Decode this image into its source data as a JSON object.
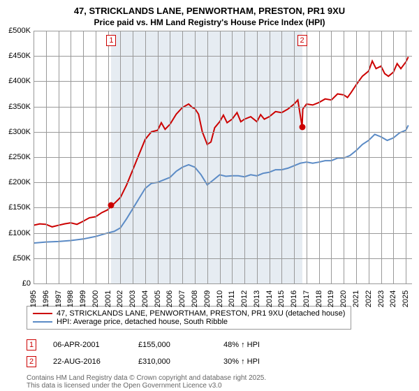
{
  "title": "47, STRICKLANDS LANE, PENWORTHAM, PRESTON, PR1 9XU",
  "subtitle": "Price paid vs. HM Land Registry's House Price Index (HPI)",
  "chart": {
    "type": "line",
    "background_color": "#ffffff",
    "grid_color": "#999999",
    "shaded_band_color": "#e6ecf2",
    "x": {
      "min": 1995,
      "max": 2025.5,
      "ticks": [
        1995,
        1996,
        1997,
        1998,
        1999,
        2000,
        2001,
        2002,
        2003,
        2004,
        2005,
        2006,
        2007,
        2008,
        2009,
        2010,
        2011,
        2012,
        2013,
        2014,
        2015,
        2016,
        2017,
        2018,
        2019,
        2020,
        2021,
        2022,
        2023,
        2024,
        2025
      ]
    },
    "y": {
      "min": 0,
      "max": 500000,
      "tick_step": 50000,
      "labels": [
        "£0",
        "£50K",
        "£100K",
        "£150K",
        "£200K",
        "£250K",
        "£300K",
        "£350K",
        "£400K",
        "£450K",
        "£500K"
      ]
    },
    "series": [
      {
        "name": "47, STRICKLANDS LANE, PENWORTHAM, PRESTON, PR1 9XU (detached house)",
        "color": "#cc0000",
        "width": 2,
        "points": [
          [
            1995,
            115000
          ],
          [
            1995.5,
            118000
          ],
          [
            1996,
            117000
          ],
          [
            1996.5,
            112000
          ],
          [
            1997,
            115000
          ],
          [
            1997.5,
            118000
          ],
          [
            1998,
            120000
          ],
          [
            1998.5,
            117000
          ],
          [
            1999,
            123000
          ],
          [
            1999.5,
            130000
          ],
          [
            2000,
            132000
          ],
          [
            2000.5,
            140000
          ],
          [
            2001,
            146000
          ],
          [
            2001.27,
            155000
          ],
          [
            2001.5,
            158000
          ],
          [
            2002,
            170000
          ],
          [
            2002.5,
            195000
          ],
          [
            2003,
            225000
          ],
          [
            2003.5,
            255000
          ],
          [
            2004,
            285000
          ],
          [
            2004.5,
            300000
          ],
          [
            2005,
            303000
          ],
          [
            2005.3,
            318000
          ],
          [
            2005.6,
            305000
          ],
          [
            2006,
            315000
          ],
          [
            2006.5,
            335000
          ],
          [
            2007,
            348000
          ],
          [
            2007.5,
            355000
          ],
          [
            2007.8,
            348000
          ],
          [
            2008,
            346000
          ],
          [
            2008.3,
            335000
          ],
          [
            2008.6,
            300000
          ],
          [
            2009,
            275000
          ],
          [
            2009.3,
            280000
          ],
          [
            2009.6,
            308000
          ],
          [
            2010,
            320000
          ],
          [
            2010.3,
            333000
          ],
          [
            2010.6,
            318000
          ],
          [
            2011,
            325000
          ],
          [
            2011.4,
            338000
          ],
          [
            2011.7,
            320000
          ],
          [
            2012,
            325000
          ],
          [
            2012.5,
            330000
          ],
          [
            2013,
            320000
          ],
          [
            2013.3,
            334000
          ],
          [
            2013.6,
            325000
          ],
          [
            2014,
            330000
          ],
          [
            2014.5,
            340000
          ],
          [
            2015,
            338000
          ],
          [
            2015.5,
            345000
          ],
          [
            2016,
            355000
          ],
          [
            2016.3,
            363000
          ],
          [
            2016.64,
            310000
          ],
          [
            2016.7,
            345000
          ],
          [
            2017,
            355000
          ],
          [
            2017.5,
            353000
          ],
          [
            2018,
            358000
          ],
          [
            2018.5,
            365000
          ],
          [
            2019,
            363000
          ],
          [
            2019.5,
            375000
          ],
          [
            2020,
            373000
          ],
          [
            2020.3,
            368000
          ],
          [
            2020.6,
            378000
          ],
          [
            2021,
            393000
          ],
          [
            2021.5,
            410000
          ],
          [
            2022,
            420000
          ],
          [
            2022.3,
            440000
          ],
          [
            2022.6,
            425000
          ],
          [
            2023,
            430000
          ],
          [
            2023.3,
            415000
          ],
          [
            2023.6,
            410000
          ],
          [
            2024,
            418000
          ],
          [
            2024.3,
            435000
          ],
          [
            2024.6,
            425000
          ],
          [
            2025,
            438000
          ],
          [
            2025.2,
            448000
          ]
        ]
      },
      {
        "name": "HPI: Average price, detached house, South Ribble",
        "color": "#5b8bc6",
        "width": 2,
        "points": [
          [
            1995,
            80000
          ],
          [
            1996,
            82000
          ],
          [
            1997,
            83000
          ],
          [
            1998,
            85000
          ],
          [
            1999,
            88000
          ],
          [
            2000,
            93000
          ],
          [
            2001,
            100000
          ],
          [
            2001.5,
            103000
          ],
          [
            2002,
            110000
          ],
          [
            2002.5,
            128000
          ],
          [
            2003,
            148000
          ],
          [
            2003.5,
            168000
          ],
          [
            2004,
            188000
          ],
          [
            2004.5,
            198000
          ],
          [
            2005,
            200000
          ],
          [
            2005.5,
            205000
          ],
          [
            2006,
            210000
          ],
          [
            2006.5,
            222000
          ],
          [
            2007,
            230000
          ],
          [
            2007.5,
            235000
          ],
          [
            2008,
            230000
          ],
          [
            2008.5,
            215000
          ],
          [
            2009,
            195000
          ],
          [
            2009.5,
            205000
          ],
          [
            2010,
            215000
          ],
          [
            2010.5,
            212000
          ],
          [
            2011,
            213000
          ],
          [
            2011.5,
            213000
          ],
          [
            2012,
            211000
          ],
          [
            2012.5,
            215000
          ],
          [
            2013,
            213000
          ],
          [
            2013.5,
            218000
          ],
          [
            2014,
            220000
          ],
          [
            2014.5,
            225000
          ],
          [
            2015,
            225000
          ],
          [
            2015.5,
            228000
          ],
          [
            2016,
            233000
          ],
          [
            2016.5,
            238000
          ],
          [
            2017,
            240000
          ],
          [
            2017.5,
            238000
          ],
          [
            2018,
            240000
          ],
          [
            2018.5,
            243000
          ],
          [
            2019,
            243000
          ],
          [
            2019.5,
            248000
          ],
          [
            2020,
            248000
          ],
          [
            2020.5,
            253000
          ],
          [
            2021,
            263000
          ],
          [
            2021.5,
            275000
          ],
          [
            2022,
            283000
          ],
          [
            2022.5,
            295000
          ],
          [
            2023,
            290000
          ],
          [
            2023.5,
            283000
          ],
          [
            2024,
            288000
          ],
          [
            2024.5,
            298000
          ],
          [
            2025,
            303000
          ],
          [
            2025.2,
            313000
          ]
        ]
      }
    ],
    "markers": [
      {
        "num": "1",
        "color": "#cc0000",
        "x": 2001.27,
        "y": 155000,
        "box_y_top": true
      },
      {
        "num": "2",
        "color": "#cc0000",
        "x": 2016.64,
        "y": 310000,
        "box_y_top": true
      }
    ]
  },
  "legend": [
    {
      "color": "#cc0000",
      "label": "47, STRICKLANDS LANE, PENWORTHAM, PRESTON, PR1 9XU (detached house)"
    },
    {
      "color": "#5b8bc6",
      "label": "HPI: Average price, detached house, South Ribble"
    }
  ],
  "sales": [
    {
      "num": "1",
      "color": "#cc0000",
      "date": "06-APR-2001",
      "price": "£155,000",
      "delta": "48% ↑ HPI"
    },
    {
      "num": "2",
      "color": "#cc0000",
      "date": "22-AUG-2016",
      "price": "£310,000",
      "delta": "30% ↑ HPI"
    }
  ],
  "footer1": "Contains HM Land Registry data © Crown copyright and database right 2025.",
  "footer2": "This data is licensed under the Open Government Licence v3.0"
}
